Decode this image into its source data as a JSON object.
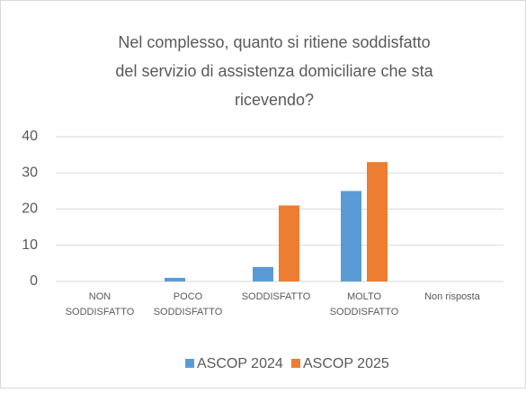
{
  "chart_data": {
    "type": "bar",
    "title": "Nel complesso, quanto si ritiene soddisfatto del servizio di assistenza domiciliare che sta ricevendo?",
    "categories": [
      "NON SODDISFATTO",
      "POCO SODDISFATTO",
      "SODDISFATTO",
      "MOLTO SODDISFATTO",
      "Non risposta"
    ],
    "series": [
      {
        "name": "ASCOP 2024",
        "color": "#5b9bd5",
        "values": [
          0,
          1,
          4,
          25,
          0
        ]
      },
      {
        "name": "ASCOP 2025",
        "color": "#ed7d31",
        "values": [
          0,
          0,
          21,
          33,
          0
        ]
      }
    ],
    "ylim": [
      0,
      40
    ],
    "yticks": [
      0,
      10,
      20,
      30,
      40
    ],
    "grid": true,
    "legend": "bottom"
  }
}
